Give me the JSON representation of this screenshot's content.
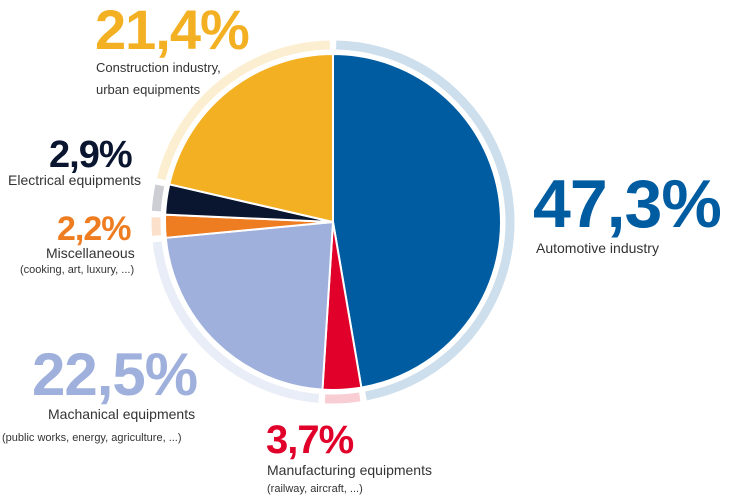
{
  "chart_data": {
    "type": "pie",
    "slices": [
      {
        "label": "Automotive industry",
        "sublabel": "",
        "value": 47.3,
        "value_text": "47,3%",
        "color": "#005ca1",
        "ring_color": "#cddeec"
      },
      {
        "label": "Manufacturing equipments",
        "sublabel": "(railway, aircraft, ...)",
        "value": 3.7,
        "value_text": "3,7%",
        "color": "#e1002a",
        "ring_color": "#f8cdd3"
      },
      {
        "label": "Machanical equipments",
        "sublabel": "(public works, energy, agriculture, ...)",
        "value": 22.5,
        "value_text": "22,5%",
        "color": "#9fb0dc",
        "ring_color": "#e9edf7"
      },
      {
        "label": "Miscellaneous",
        "sublabel": "(cooking, art, luxury, ...)",
        "value": 2.2,
        "value_text": "2,2%",
        "color": "#ee7d22",
        "ring_color": "#fbe1cc"
      },
      {
        "label": "Electrical equipments",
        "sublabel": "",
        "value": 2.9,
        "value_text": "2,9%",
        "color": "#0a1530",
        "ring_color": "#cdced4"
      },
      {
        "label": "Construction industry,",
        "sublabel": "urban equipments",
        "value": 21.4,
        "value_text": "21,4%",
        "color": "#f3b022",
        "ring_color": "#fcefd1"
      }
    ]
  }
}
